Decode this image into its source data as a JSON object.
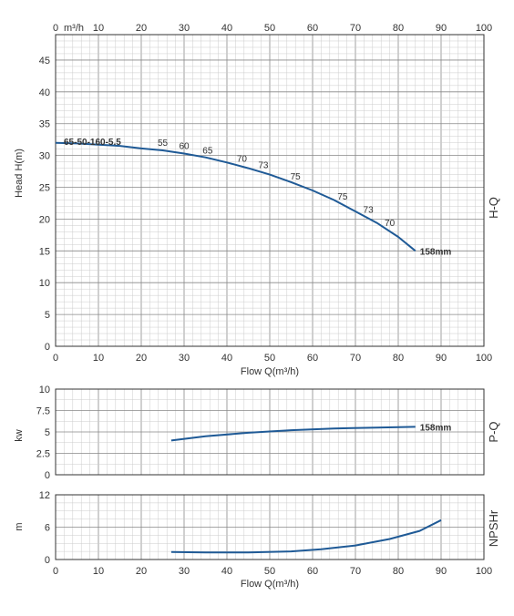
{
  "chart_data": [
    {
      "type": "line",
      "id": "hq",
      "side_label": "H-Q",
      "ylabel": "Head H(m)",
      "xlabel": "Flow Q(m³/h)",
      "top_axis_unit": "m³/h",
      "xlim": [
        0,
        100
      ],
      "ylim": [
        0,
        49
      ],
      "x_ticks": [
        0,
        10,
        20,
        30,
        40,
        50,
        60,
        70,
        80,
        90,
        100
      ],
      "top_x_ticks": [
        "0",
        "10",
        "20",
        "30",
        "40",
        "50",
        "60",
        "70",
        "80",
        "90",
        "100"
      ],
      "y_ticks": [
        0,
        5,
        10,
        15,
        20,
        25,
        30,
        35,
        40,
        45
      ],
      "grid": true,
      "model_label": "65-50-160-5.5",
      "series": [
        {
          "name": "158mm",
          "x": [
            0,
            5,
            10,
            15,
            20,
            25,
            30,
            35,
            40,
            45,
            50,
            55,
            60,
            65,
            70,
            75,
            80,
            84
          ],
          "y": [
            32,
            31.9,
            31.7,
            31.5,
            31.1,
            30.8,
            30.3,
            29.7,
            28.9,
            28.0,
            27.0,
            25.8,
            24.5,
            23.0,
            21.2,
            19.4,
            17.2,
            15.0
          ]
        }
      ],
      "efficiency_labels": [
        {
          "text": "55",
          "x": 25,
          "y": 31.5
        },
        {
          "text": "60",
          "x": 30,
          "y": 31.0
        },
        {
          "text": "65",
          "x": 35.5,
          "y": 30.3
        },
        {
          "text": "70",
          "x": 43.5,
          "y": 29.0
        },
        {
          "text": "73",
          "x": 48.5,
          "y": 28.0
        },
        {
          "text": "75",
          "x": 56,
          "y": 26.2
        },
        {
          "text": "75",
          "x": 67,
          "y": 23.1
        },
        {
          "text": "73",
          "x": 73,
          "y": 21.0
        },
        {
          "text": "70",
          "x": 78,
          "y": 18.9
        }
      ]
    },
    {
      "type": "line",
      "id": "pq",
      "side_label": "P-Q",
      "ylabel": "kw",
      "xlim": [
        0,
        100
      ],
      "ylim": [
        0,
        10
      ],
      "y_ticks": [
        "0",
        "2.5",
        "5",
        "7.5",
        "10"
      ],
      "grid": true,
      "series": [
        {
          "name": "158mm",
          "x": [
            27,
            35,
            45,
            55,
            65,
            75,
            84
          ],
          "y": [
            4.0,
            4.5,
            4.9,
            5.2,
            5.4,
            5.5,
            5.6
          ]
        }
      ]
    },
    {
      "type": "line",
      "id": "npsh",
      "side_label": "NPSHr",
      "ylabel": "m",
      "xlabel": "Flow Q(m³/h)",
      "xlim": [
        0,
        100
      ],
      "ylim": [
        0,
        12
      ],
      "x_ticks": [
        0,
        10,
        20,
        30,
        40,
        50,
        60,
        70,
        80,
        90,
        100
      ],
      "y_ticks": [
        0,
        6,
        12
      ],
      "grid": true,
      "series": [
        {
          "name": "",
          "x": [
            27,
            35,
            45,
            55,
            62,
            70,
            78,
            85,
            90
          ],
          "y": [
            1.4,
            1.3,
            1.3,
            1.5,
            1.9,
            2.6,
            3.8,
            5.3,
            7.3
          ]
        }
      ]
    }
  ],
  "colors": {
    "curve": "#1f5a96",
    "grid_major": "#888888",
    "grid_minor": "#cccccc",
    "frame": "#333333"
  }
}
